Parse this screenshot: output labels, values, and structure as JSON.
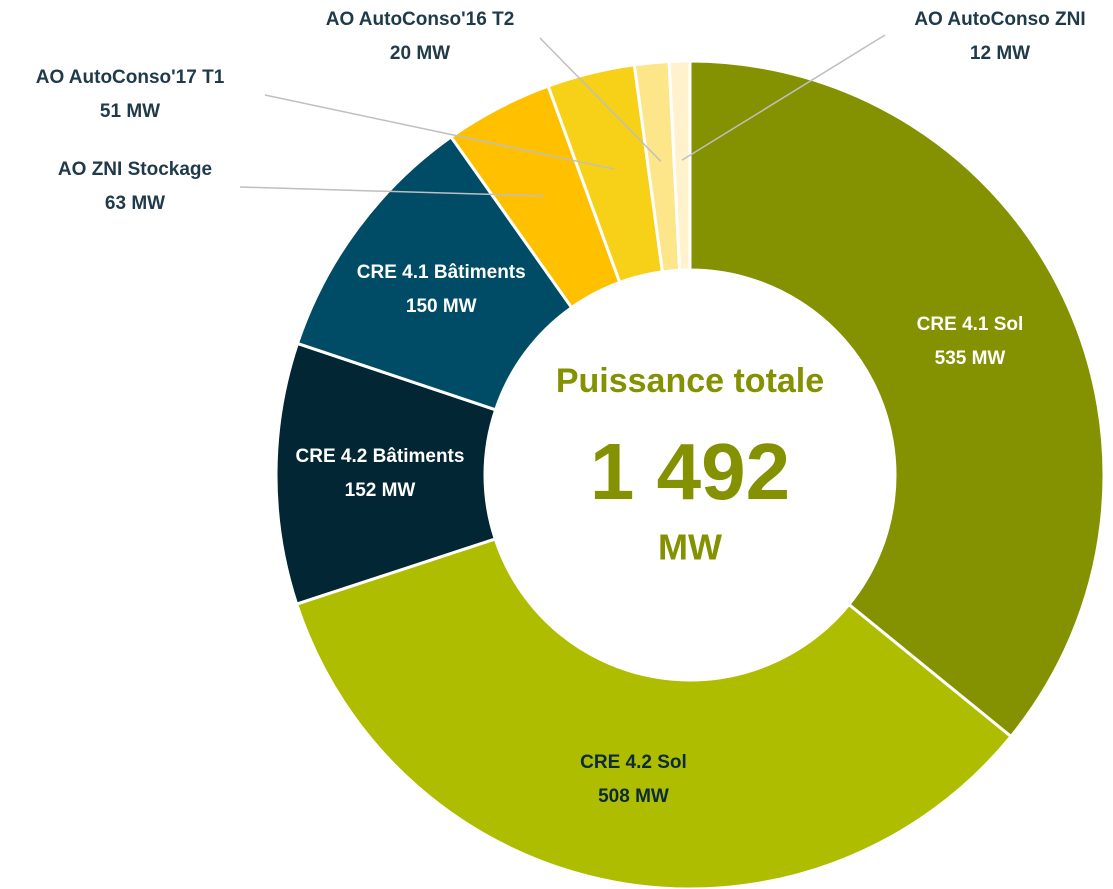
{
  "chart_data": {
    "type": "donut",
    "categories": [
      "CRE 4.1 Sol",
      "CRE 4.2 Sol",
      "CRE 4.2 Bâtiments",
      "CRE 4.1 Bâtiments",
      "AO ZNI Stockage",
      "AO AutoConso'17 T1",
      "AO AutoConso'16 T2",
      "AO AutoConso ZNI"
    ],
    "values": [
      535,
      508,
      152,
      150,
      63,
      51,
      20,
      12
    ],
    "value_labels": [
      "535 MW",
      "508 MW",
      "152 MW",
      "150 MW",
      "63 MW",
      "51 MW",
      "20 MW",
      "12 MW"
    ],
    "colors": [
      "#849100",
      "#aebd00",
      "#022633",
      "#004b66",
      "#ffc000",
      "#f7d117",
      "#fde68a",
      "#fff2cc"
    ],
    "center_title": "Puissance totale",
    "center_value": "1 492",
    "center_unit": "MW"
  }
}
